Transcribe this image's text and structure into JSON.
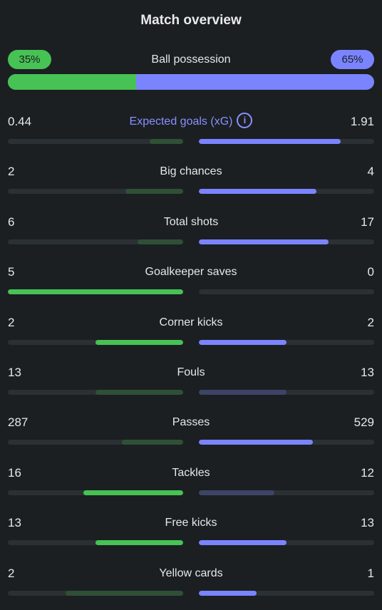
{
  "title": "Match overview",
  "possession": {
    "label": "Ball possession",
    "home": "35%",
    "away": "65%",
    "home_fraction": 0.35
  },
  "colors": {
    "home": "#47c254",
    "away": "#7b84ff",
    "home_dim": "#2f5036",
    "away_dim": "#3e4466"
  },
  "stats": [
    {
      "label": "Expected goals (xG)",
      "home": "0.44",
      "away": "1.91",
      "home_fraction": 0.19,
      "away_fraction": 0.81,
      "home_bright": false,
      "away_bright": true,
      "info_icon": "info-icon"
    },
    {
      "label": "Big chances",
      "home": "2",
      "away": "4",
      "home_fraction": 0.33,
      "away_fraction": 0.67,
      "home_bright": false,
      "away_bright": true
    },
    {
      "label": "Total shots",
      "home": "6",
      "away": "17",
      "home_fraction": 0.26,
      "away_fraction": 0.74,
      "home_bright": false,
      "away_bright": true
    },
    {
      "label": "Goalkeeper saves",
      "home": "5",
      "away": "0",
      "home_fraction": 1.0,
      "away_fraction": 0.0,
      "home_bright": true,
      "away_bright": false
    },
    {
      "label": "Corner kicks",
      "home": "2",
      "away": "2",
      "home_fraction": 0.5,
      "away_fraction": 0.5,
      "home_bright": true,
      "away_bright": true
    },
    {
      "label": "Fouls",
      "home": "13",
      "away": "13",
      "home_fraction": 0.5,
      "away_fraction": 0.5,
      "home_bright": false,
      "away_bright": false
    },
    {
      "label": "Passes",
      "home": "287",
      "away": "529",
      "home_fraction": 0.35,
      "away_fraction": 0.65,
      "home_bright": false,
      "away_bright": true
    },
    {
      "label": "Tackles",
      "home": "16",
      "away": "12",
      "home_fraction": 0.57,
      "away_fraction": 0.43,
      "home_bright": true,
      "away_bright": false
    },
    {
      "label": "Free kicks",
      "home": "13",
      "away": "13",
      "home_fraction": 0.5,
      "away_fraction": 0.5,
      "home_bright": true,
      "away_bright": true
    },
    {
      "label": "Yellow cards",
      "home": "2",
      "away": "1",
      "home_fraction": 0.67,
      "away_fraction": 0.33,
      "home_bright": false,
      "away_bright": true
    }
  ]
}
